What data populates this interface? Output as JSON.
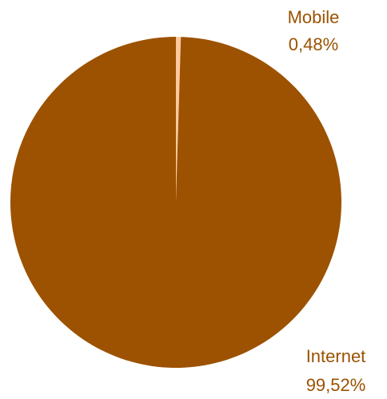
{
  "chart_data": {
    "type": "pie",
    "slices": [
      {
        "label": "Internet",
        "value_text": "99,52%",
        "value": 99.52,
        "color": "#9c5200"
      },
      {
        "label": "Mobile",
        "value_text": "0,48%",
        "value": 0.48,
        "color": "#ffc99e"
      }
    ],
    "label_color": "#9c5200"
  }
}
